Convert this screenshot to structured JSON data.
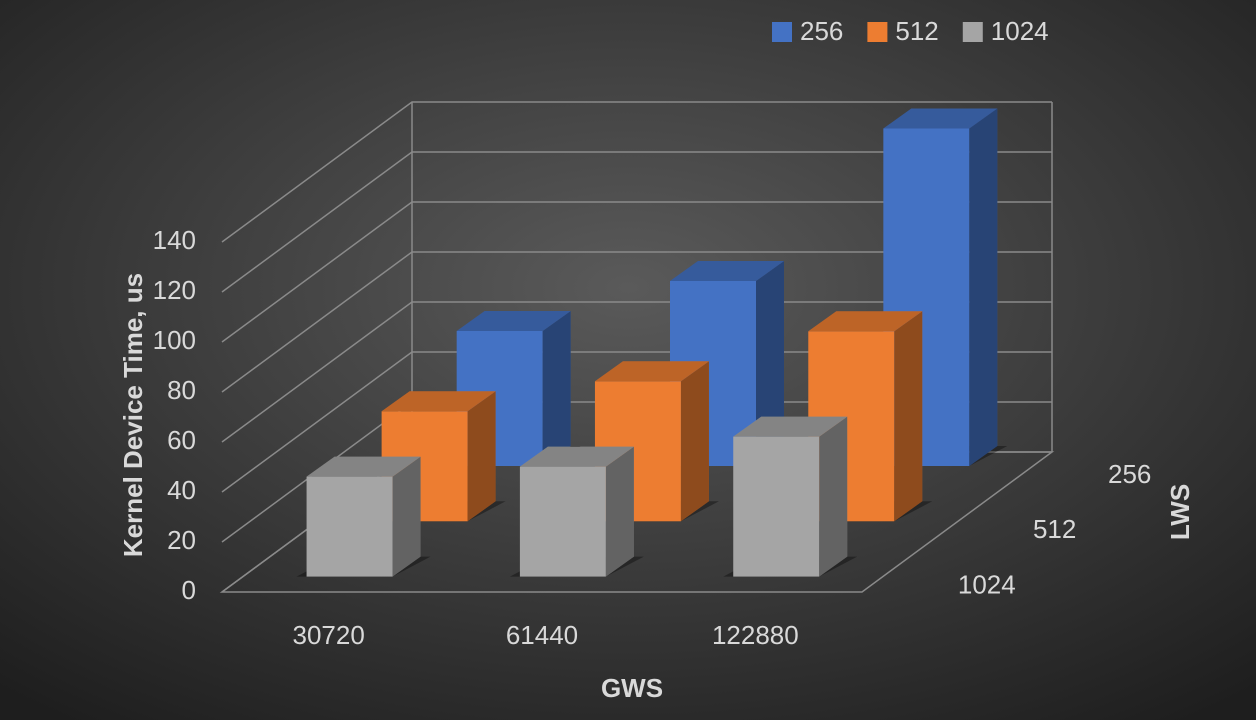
{
  "chart_data": {
    "type": "bar3d",
    "x_label": "GWS",
    "y_label": "Kernel Device Time, us",
    "z_label": "LWS",
    "categories": [
      "30720",
      "61440",
      "122880"
    ],
    "series": [
      {
        "name": "256",
        "color": "#4472c4",
        "values": [
          54,
          74,
          135
        ]
      },
      {
        "name": "512",
        "color": "#ed7d31",
        "values": [
          44,
          56,
          76
        ]
      },
      {
        "name": "1024",
        "color": "#a5a5a5",
        "values": [
          40,
          44,
          56
        ]
      }
    ],
    "ylim": [
      0,
      140
    ],
    "yticks": [
      0,
      20,
      40,
      60,
      80,
      100,
      120,
      140
    ],
    "grid": true
  }
}
